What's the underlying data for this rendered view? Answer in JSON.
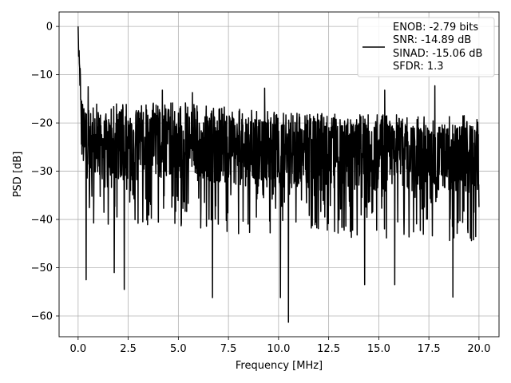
{
  "chart_data": {
    "type": "line",
    "title": "",
    "xlabel": "Frequency [MHz]",
    "ylabel": "PSD [dB]",
    "xlim": [
      -0.95,
      21.0
    ],
    "ylim": [
      -64.3,
      3.0
    ],
    "xticks": [
      0.0,
      2.5,
      5.0,
      7.5,
      10.0,
      12.5,
      15.0,
      17.5,
      20.0
    ],
    "xtick_labels": [
      "0.0",
      "2.5",
      "5.0",
      "7.5",
      "10.0",
      "12.5",
      "15.0",
      "17.5",
      "20.0"
    ],
    "yticks": [
      0,
      -10,
      -20,
      -30,
      -40,
      -50,
      -60
    ],
    "ytick_labels": [
      "0",
      "−10",
      "−20",
      "−30",
      "−40",
      "−50",
      "−60"
    ],
    "grid": true,
    "legend_position": "upper right",
    "line_color": "#000000",
    "series": [
      {
        "name": "ENOB: -2.79 bits\nSNR: -14.89 dB\nSINAD: -15.06 dB\nSFDR: 1.3",
        "legend_lines": [
          "ENOB: -2.79 bits",
          "SNR: -14.89 dB",
          "SINAD: -15.06 dB",
          "SFDR: 1.3"
        ],
        "shape": {
          "n_points": 1600,
          "start_peak": 0.0,
          "envelope": [
            [
              0.0,
              -2.0
            ],
            [
              0.05,
              -8.0
            ],
            [
              0.15,
              -14.0
            ],
            [
              0.3,
              -18.0
            ],
            [
              0.6,
              -19.0
            ],
            [
              2.0,
              -19.0
            ],
            [
              5.0,
              -18.5
            ],
            [
              8.0,
              -20.0
            ],
            [
              12.0,
              -21.0
            ],
            [
              20.0,
              -21.5
            ]
          ],
          "typical_band": [
            -14,
            -36
          ],
          "local_maxima": [
            [
              0.5,
              -12.5
            ],
            [
              4.2,
              -13.2
            ],
            [
              5.7,
              -13.7
            ],
            [
              9.3,
              -12.8
            ],
            [
              15.3,
              -13.2
            ],
            [
              17.8,
              -12.3
            ]
          ],
          "local_minima": [
            [
              0.4,
              -52.5
            ],
            [
              1.8,
              -51
            ],
            [
              2.3,
              -54.5
            ],
            [
              6.7,
              -56.2
            ],
            [
              10.1,
              -56.2
            ],
            [
              10.5,
              -61.3
            ],
            [
              14.3,
              -53.5
            ],
            [
              15.8,
              -53.5
            ],
            [
              18.7,
              -56.1
            ]
          ],
          "end_x": 20.0
        }
      }
    ]
  }
}
